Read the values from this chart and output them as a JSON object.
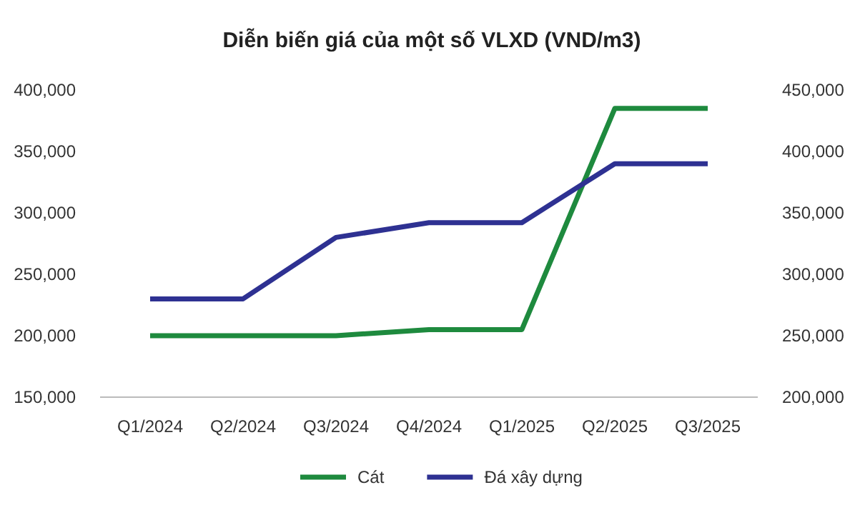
{
  "chart_data": {
    "type": "line",
    "title": "Diễn biến giá của một số VLXD (VND/m3)",
    "categories": [
      "Q1/2024",
      "Q2/2024",
      "Q3/2024",
      "Q4/2024",
      "Q1/2025",
      "Q2/2025",
      "Q3/2025"
    ],
    "series": [
      {
        "name": "Cát",
        "color": "#1e8a3e",
        "values": [
          200000,
          200000,
          200000,
          205000,
          205000,
          385000,
          385000
        ]
      },
      {
        "name": "Đá xây dựng",
        "color": "#2e3192",
        "axis": "y2",
        "values": [
          280000,
          280000,
          330000,
          342000,
          342000,
          390000,
          390000
        ]
      }
    ],
    "ylim": [
      150000,
      400000
    ],
    "yticks": [
      {
        "value": 150000,
        "label": "150,000"
      },
      {
        "value": 200000,
        "label": "200,000"
      },
      {
        "value": 250000,
        "label": "250,000"
      },
      {
        "value": 300000,
        "label": "300,000"
      },
      {
        "value": 350000,
        "label": "350,000"
      },
      {
        "value": 400000,
        "label": "400,000"
      }
    ],
    "y2lim": [
      200000,
      450000
    ],
    "y2ticks": [
      {
        "value": 200000,
        "label": "200,000"
      },
      {
        "value": 250000,
        "label": "250,000"
      },
      {
        "value": 300000,
        "label": "300,000"
      },
      {
        "value": 350000,
        "label": "350,000"
      },
      {
        "value": 400000,
        "label": "400,000"
      },
      {
        "value": 450000,
        "label": "450,000"
      }
    ],
    "legend": "bottom",
    "marker": "none",
    "line_style": "solid"
  }
}
